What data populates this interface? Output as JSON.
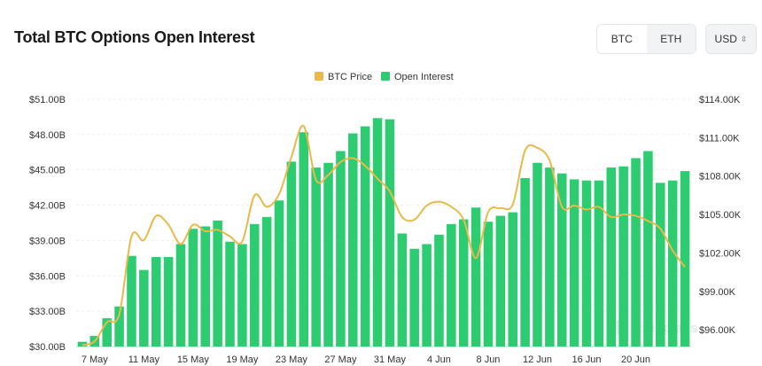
{
  "header": {
    "title": "Total BTC Options Open Interest",
    "toggle": {
      "btc_label": "BTC",
      "eth_label": "ETH"
    },
    "currency": {
      "label": "USD",
      "icon": "chevron-up-down-icon"
    }
  },
  "colors": {
    "bar": "#2ecc71",
    "line": "#e9b949"
  },
  "chart_data": {
    "type": "bar",
    "title": "Total BTC Options Open Interest",
    "legend": {
      "position": "top-center",
      "items": [
        "BTC Price",
        "Open Interest"
      ]
    },
    "x_tick_labels": [
      "7 May",
      "11 May",
      "15 May",
      "19 May",
      "23 May",
      "27 May",
      "31 May",
      "4 Jun",
      "8 Jun",
      "12 Jun",
      "16 Jun",
      "20 Jun"
    ],
    "tick_every": 4,
    "first_tick_index": 1,
    "y_left": {
      "ticks": [
        "$30.00B",
        "$33.00B",
        "$36.00B",
        "$39.00B",
        "$42.00B",
        "$45.00B",
        "$48.00B",
        "$51.00B"
      ],
      "range": [
        30,
        51
      ],
      "unit": "B USD"
    },
    "y_right": {
      "ticks": [
        "$96.00K",
        "$99.00K",
        "$102.00K",
        "$105.00K",
        "$108.00K",
        "$111.00K",
        "$114.00K"
      ],
      "range": [
        94.7,
        114
      ],
      "unit": "K USD"
    },
    "grid": true,
    "watermark": "coinglass",
    "series": [
      {
        "name": "Open Interest",
        "type": "bar",
        "axis": "left",
        "values": [
          30.4,
          30.9,
          32.4,
          33.4,
          37.7,
          36.5,
          37.6,
          37.6,
          38.7,
          40.0,
          40.2,
          40.7,
          38.9,
          38.7,
          40.4,
          41.0,
          42.4,
          45.7,
          48.2,
          45.2,
          45.6,
          46.6,
          48.1,
          48.7,
          49.4,
          49.3,
          39.6,
          38.3,
          38.7,
          39.5,
          40.4,
          40.8,
          41.8,
          40.6,
          41.1,
          41.4,
          44.3,
          45.6,
          45.2,
          44.7,
          44.2,
          44.1,
          44.1,
          45.2,
          45.3,
          46.0,
          46.6,
          43.9,
          44.1,
          44.9
        ]
      },
      {
        "name": "BTC Price",
        "type": "line",
        "axis": "right",
        "values": [
          94.8,
          95.1,
          96.6,
          97.2,
          103.3,
          103.0,
          104.9,
          104.2,
          102.7,
          104.2,
          103.7,
          103.8,
          103.3,
          102.9,
          106.5,
          105.6,
          106.6,
          109.5,
          111.9,
          107.7,
          108.1,
          109.1,
          109.4,
          108.8,
          107.8,
          106.8,
          104.8,
          104.6,
          105.7,
          106.0,
          105.6,
          104.6,
          101.6,
          105.2,
          105.5,
          105.8,
          110.0,
          110.2,
          109.2,
          105.6,
          105.7,
          105.4,
          105.6,
          104.8,
          105.0,
          104.9,
          104.5,
          103.9,
          102.2,
          100.9
        ]
      }
    ]
  }
}
